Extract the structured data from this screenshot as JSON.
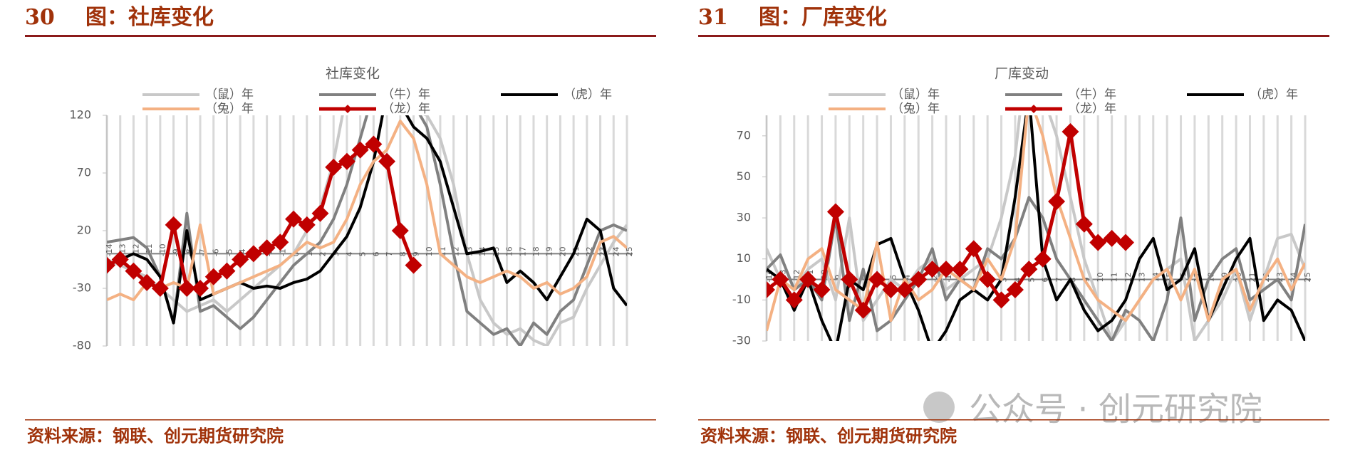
{
  "watermark": "公众号 · 创元研究院",
  "chart_data": [
    {
      "type": "line",
      "number": "30",
      "figure_title": "图：社库变化",
      "title": "社库变化",
      "source": "资料来源：钢联、创元期货研究院",
      "categories": [
        "-14",
        "-13",
        "-12",
        "-11",
        "-10",
        "-9",
        "-8",
        "-7",
        "-6",
        "-5",
        "-4",
        "-3",
        "-2",
        "-1",
        "0",
        "1",
        "2",
        "3",
        "4",
        "5",
        "6",
        "7",
        "8",
        "9",
        "10",
        "11",
        "12",
        "13",
        "14",
        "15",
        "16",
        "17",
        "18",
        "19",
        "20",
        "21",
        "22",
        "23",
        "24",
        "25"
      ],
      "ylim": [
        -80,
        120
      ],
      "yticks": [
        -80,
        -30,
        20,
        70,
        120
      ],
      "series": [
        {
          "name": "（鼠）年",
          "color": "#c8c8c8",
          "values": [
            -5,
            -10,
            -15,
            -20,
            -30,
            -40,
            -50,
            -45,
            -40,
            -50,
            -40,
            -30,
            -20,
            -10,
            0,
            20,
            40,
            80,
            140,
            160,
            150,
            140,
            130,
            125,
            120,
            100,
            60,
            0,
            -40,
            -60,
            -70,
            -65,
            -75,
            -80,
            -60,
            -55,
            -30,
            -10,
            10,
            25
          ]
        },
        {
          "name": "（牛）年",
          "color": "#808080",
          "values": [
            10,
            12,
            14,
            5,
            -20,
            -60,
            35,
            -50,
            -45,
            -55,
            -65,
            -55,
            -40,
            -25,
            -10,
            0,
            10,
            30,
            60,
            100,
            140,
            150,
            140,
            130,
            110,
            60,
            0,
            -50,
            -60,
            -70,
            -65,
            -80,
            -60,
            -70,
            -50,
            -40,
            -10,
            20,
            25,
            20
          ]
        },
        {
          "name": "（虎）年",
          "color": "#000000",
          "values": [
            -10,
            -5,
            0,
            -5,
            -20,
            -60,
            20,
            -40,
            -35,
            -30,
            -25,
            -30,
            -28,
            -30,
            -25,
            -22,
            -15,
            0,
            15,
            40,
            80,
            140,
            130,
            110,
            100,
            80,
            40,
            0,
            2,
            5,
            -25,
            -15,
            -25,
            -40,
            -20,
            0,
            30,
            20,
            -30,
            -45
          ]
        },
        {
          "name": "（兔）年",
          "color": "#f4b183",
          "values": [
            -40,
            -35,
            -40,
            -25,
            -30,
            -25,
            -30,
            25,
            -35,
            -30,
            -25,
            -20,
            -15,
            -10,
            0,
            10,
            5,
            10,
            30,
            60,
            80,
            90,
            115,
            100,
            60,
            0,
            -10,
            -20,
            -25,
            -20,
            -15,
            -20,
            -30,
            -25,
            -35,
            -30,
            -20,
            10,
            15,
            5
          ]
        },
        {
          "name": "（龙）年",
          "color": "#c00000",
          "marker": "diamond",
          "values": [
            -10,
            -5,
            -15,
            -25,
            -30,
            25,
            -30,
            -30,
            -20,
            -15,
            -5,
            0,
            5,
            10,
            30,
            25,
            35,
            75,
            80,
            90,
            95,
            80,
            20,
            -10,
            null,
            null,
            null,
            null,
            null,
            null,
            null,
            null,
            null,
            null,
            null,
            null,
            null,
            null,
            null,
            null
          ]
        }
      ]
    },
    {
      "type": "line",
      "number": "31",
      "figure_title": "图：厂库变化",
      "title": "厂库变动",
      "source": "资料来源：钢联、创元期货研究院",
      "categories": [
        "-14",
        "-13",
        "-12",
        "-11",
        "-10",
        "-9",
        "-8",
        "-7",
        "-6",
        "-5",
        "-4",
        "-3",
        "-2",
        "-1",
        "0",
        "1",
        "2",
        "3",
        "4",
        "5",
        "6",
        "7",
        "8",
        "9",
        "10",
        "11",
        "12",
        "13",
        "14",
        "15",
        "16",
        "17",
        "18",
        "19",
        "20",
        "21",
        "22",
        "23",
        "24",
        "25"
      ],
      "ylim": [
        -30,
        80
      ],
      "yticks": [
        -30,
        -10,
        10,
        30,
        50,
        70
      ],
      "series": [
        {
          "name": "（鼠）年",
          "color": "#c8c8c8",
          "values": [
            15,
            0,
            -5,
            5,
            10,
            -10,
            30,
            -20,
            -10,
            0,
            -5,
            5,
            10,
            -5,
            0,
            5,
            10,
            30,
            60,
            120,
            90,
            70,
            40,
            10,
            -10,
            -30,
            -20,
            -10,
            0,
            5,
            10,
            -30,
            -20,
            -10,
            5,
            -20,
            0,
            20,
            22,
            5
          ]
        },
        {
          "name": "（牛）年",
          "color": "#808080",
          "values": [
            5,
            12,
            -5,
            0,
            -10,
            30,
            -20,
            5,
            -25,
            -20,
            -10,
            0,
            15,
            -10,
            0,
            -5,
            15,
            10,
            20,
            40,
            30,
            10,
            0,
            -10,
            -20,
            -30,
            -15,
            -20,
            -30,
            -10,
            30,
            -20,
            0,
            10,
            15,
            -10,
            -5,
            0,
            -10,
            27
          ]
        },
        {
          "name": "（虎）年",
          "color": "#000000",
          "values": [
            5,
            0,
            -15,
            0,
            -20,
            -35,
            0,
            -5,
            17,
            20,
            0,
            -15,
            -35,
            -25,
            -10,
            -5,
            -10,
            0,
            40,
            90,
            10,
            -10,
            0,
            -15,
            -25,
            -20,
            -10,
            10,
            20,
            -5,
            0,
            15,
            -20,
            -5,
            10,
            20,
            -20,
            -10,
            -15,
            -30
          ]
        },
        {
          "name": "（兔）年",
          "color": "#f4b183",
          "values": [
            -25,
            0,
            -5,
            10,
            15,
            -5,
            -10,
            -15,
            18,
            -20,
            0,
            -10,
            -5,
            5,
            0,
            -5,
            10,
            0,
            20,
            90,
            70,
            40,
            20,
            0,
            -10,
            -15,
            -20,
            -10,
            0,
            5,
            -10,
            5,
            -20,
            0,
            5,
            -15,
            0,
            10,
            -5,
            8
          ]
        },
        {
          "name": "（龙）年",
          "color": "#c00000",
          "marker": "diamond",
          "values": [
            -5,
            0,
            -10,
            0,
            -5,
            33,
            0,
            -15,
            0,
            -5,
            -5,
            0,
            5,
            5,
            5,
            15,
            0,
            -10,
            -5,
            5,
            10,
            38,
            72,
            27,
            18,
            20,
            18,
            null,
            null,
            null,
            null,
            null,
            null,
            null,
            null,
            null,
            null,
            null,
            null,
            null
          ]
        }
      ]
    }
  ]
}
